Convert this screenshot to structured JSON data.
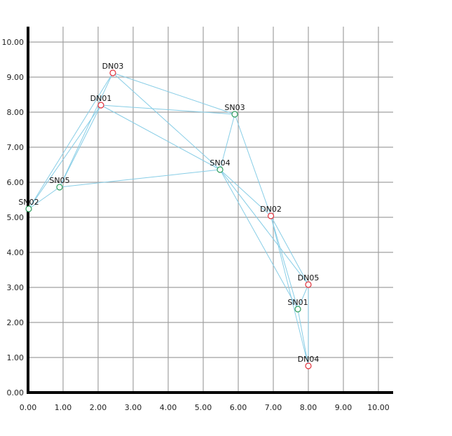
{
  "chart_data": {
    "type": "scatter",
    "title": "",
    "xlabel": "",
    "ylabel": "",
    "xlim": [
      0,
      10.4
    ],
    "ylim": [
      0,
      10.5
    ],
    "grid": true,
    "x_ticks": [
      "0.00",
      "1.00",
      "2.00",
      "3.00",
      "4.00",
      "5.00",
      "6.00",
      "7.00",
      "8.00",
      "9.00",
      "10.00"
    ],
    "y_ticks": [
      "0.00",
      "1.00",
      "2.00",
      "3.00",
      "4.00",
      "5.00",
      "6.00",
      "7.00",
      "8.00",
      "9.00",
      "10.00"
    ],
    "nodes": [
      {
        "id": "DN01",
        "label": "DN01",
        "x": 2.08,
        "y": 8.2,
        "group": "DN"
      },
      {
        "id": "DN02",
        "label": "DN02",
        "x": 6.93,
        "y": 5.04,
        "group": "DN"
      },
      {
        "id": "DN03",
        "label": "DN03",
        "x": 2.42,
        "y": 9.12,
        "group": "DN"
      },
      {
        "id": "DN04",
        "label": "DN04",
        "x": 8.0,
        "y": 0.76,
        "group": "DN"
      },
      {
        "id": "DN05",
        "label": "DN05",
        "x": 8.0,
        "y": 3.08,
        "group": "DN"
      },
      {
        "id": "SN01",
        "label": "SN01",
        "x": 7.7,
        "y": 2.38,
        "group": "SN"
      },
      {
        "id": "SN02",
        "label": "SN02",
        "x": 0.02,
        "y": 5.24,
        "group": "SN"
      },
      {
        "id": "SN03",
        "label": "SN03",
        "x": 5.9,
        "y": 7.94,
        "group": "SN"
      },
      {
        "id": "SN04",
        "label": "SN04",
        "x": 5.48,
        "y": 6.36,
        "group": "SN"
      },
      {
        "id": "SN05",
        "label": "SN05",
        "x": 0.9,
        "y": 5.86,
        "group": "SN"
      }
    ],
    "edges": [
      [
        "SN02",
        "DN03"
      ],
      [
        "SN02",
        "DN01"
      ],
      [
        "SN02",
        "SN05"
      ],
      [
        "SN05",
        "DN03"
      ],
      [
        "SN05",
        "DN01"
      ],
      [
        "SN05",
        "SN04"
      ],
      [
        "DN03",
        "SN03"
      ],
      [
        "DN03",
        "SN04"
      ],
      [
        "DN01",
        "SN03"
      ],
      [
        "DN01",
        "SN04"
      ],
      [
        "SN03",
        "SN04"
      ],
      [
        "SN03",
        "DN02"
      ],
      [
        "SN04",
        "DN02"
      ],
      [
        "SN04",
        "DN05"
      ],
      [
        "SN04",
        "SN01"
      ],
      [
        "DN02",
        "DN05"
      ],
      [
        "DN02",
        "SN01"
      ],
      [
        "DN02",
        "DN04"
      ],
      [
        "DN05",
        "SN01"
      ],
      [
        "DN05",
        "DN04"
      ],
      [
        "SN01",
        "DN04"
      ]
    ],
    "colors": {
      "DN": "#e0303a",
      "SN": "#2e9e5e",
      "edge": "#87cde6",
      "grid": "#a0a0a0",
      "axis": "#000000"
    }
  }
}
